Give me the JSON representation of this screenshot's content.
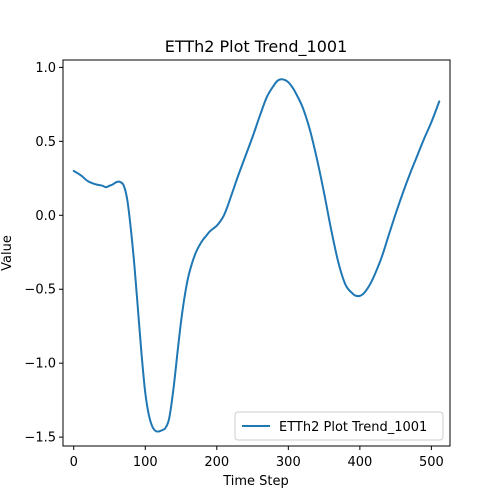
{
  "chart_data": {
    "type": "line",
    "title": "ETTh2 Plot Trend_1001",
    "xlabel": "Time Step",
    "ylabel": "Value",
    "xlim": [
      -15,
      526
    ],
    "ylim": [
      -1.56,
      1.05
    ],
    "xticks": [
      0,
      100,
      200,
      300,
      400,
      500
    ],
    "xtick_labels": [
      "0",
      "100",
      "200",
      "300",
      "400",
      "500"
    ],
    "yticks": [
      -1.5,
      -1.0,
      -0.5,
      0.0,
      0.5,
      1.0
    ],
    "ytick_labels": [
      "−1.5",
      "−1.0",
      "−0.5",
      "0.0",
      "0.5",
      "1.0"
    ],
    "grid": false,
    "legend_position": "lower right",
    "series": [
      {
        "name": "ETTh2 Plot Trend_1001",
        "color": "#1f77b4",
        "x": [
          0,
          10,
          20,
          30,
          40,
          45,
          50,
          55,
          60,
          65,
          70,
          75,
          80,
          85,
          90,
          95,
          100,
          105,
          110,
          115,
          120,
          125,
          128,
          132,
          135,
          140,
          145,
          150,
          155,
          160,
          165,
          170,
          175,
          180,
          185,
          190,
          195,
          200,
          205,
          210,
          215,
          220,
          225,
          230,
          240,
          250,
          260,
          270,
          280,
          285,
          290,
          295,
          300,
          305,
          310,
          320,
          330,
          340,
          350,
          360,
          370,
          380,
          390,
          395,
          400,
          405,
          410,
          415,
          420,
          430,
          440,
          450,
          460,
          470,
          480,
          490,
          500,
          511
        ],
        "y": [
          0.3,
          0.27,
          0.23,
          0.21,
          0.2,
          0.19,
          0.2,
          0.21,
          0.225,
          0.225,
          0.2,
          0.1,
          -0.1,
          -0.35,
          -0.65,
          -0.95,
          -1.2,
          -1.35,
          -1.43,
          -1.46,
          -1.46,
          -1.45,
          -1.44,
          -1.4,
          -1.33,
          -1.15,
          -0.93,
          -0.72,
          -0.55,
          -0.42,
          -0.33,
          -0.26,
          -0.21,
          -0.17,
          -0.14,
          -0.11,
          -0.09,
          -0.07,
          -0.04,
          0.0,
          0.06,
          0.13,
          0.2,
          0.27,
          0.4,
          0.53,
          0.67,
          0.8,
          0.88,
          0.91,
          0.92,
          0.915,
          0.9,
          0.87,
          0.83,
          0.73,
          0.58,
          0.38,
          0.15,
          -0.1,
          -0.32,
          -0.47,
          -0.53,
          -0.545,
          -0.545,
          -0.53,
          -0.5,
          -0.46,
          -0.41,
          -0.29,
          -0.14,
          0.01,
          0.15,
          0.28,
          0.4,
          0.52,
          0.63,
          0.77
        ]
      }
    ]
  }
}
